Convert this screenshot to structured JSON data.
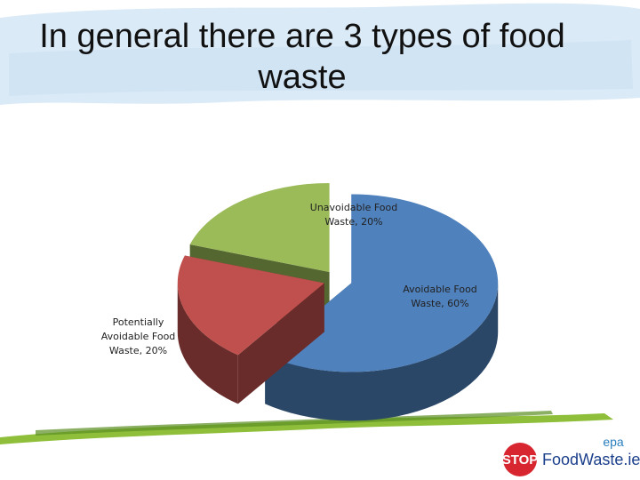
{
  "chart_data": {
    "type": "pie",
    "title": "In general there are 3 types of food waste",
    "labels": [
      "Avoidable Food Waste, 60%",
      "Potentially Avoidable Food Waste, 20%",
      "Unavoidable Food Waste, 20%"
    ],
    "values": [
      60,
      20,
      20
    ],
    "colors": [
      "#4f81bd",
      "#c0504d",
      "#9bbb59"
    ]
  },
  "logo": {
    "agency": "epa",
    "stop": "STOP",
    "site": "FoodWaste.ie"
  }
}
